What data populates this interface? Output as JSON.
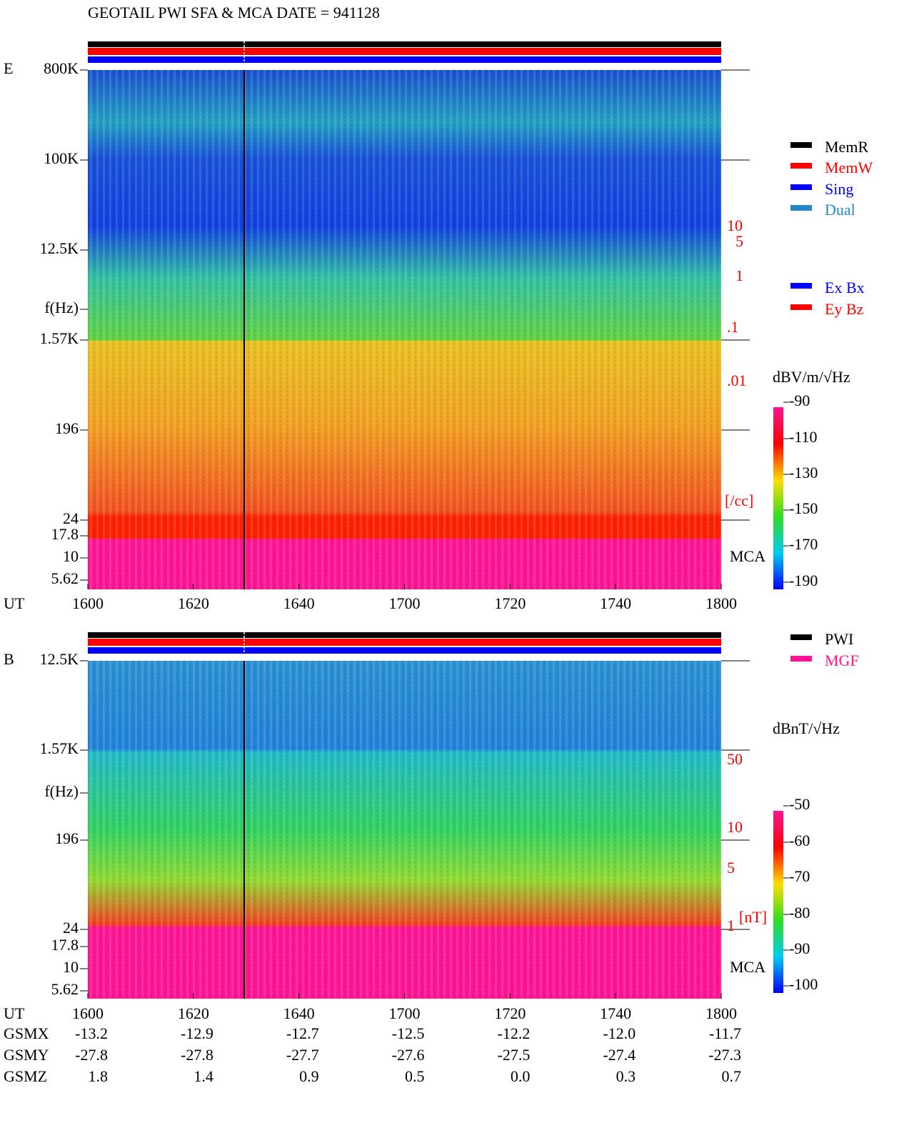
{
  "header": {
    "title": "GEOTAIL  PWI SFA & MCA   DATE = 941128"
  },
  "panels": [
    {
      "label": "E",
      "freq_labels": [
        "800K",
        "100K",
        "12.5K",
        "f(Hz)",
        "1.57K",
        "196",
        "24",
        "17.8",
        "10",
        "5.62"
      ],
      "right_labels": [
        "10",
        "5",
        "1",
        ".1",
        ".01",
        "[/cc]",
        "MCA"
      ],
      "colorbar": {
        "unit": "dBV/m/√Hz",
        "ticks": [
          "-90",
          "-110",
          "-130",
          "-150",
          "-170",
          "-190"
        ]
      },
      "legend": [
        {
          "name": "MemR",
          "color": "#000000"
        },
        {
          "name": "MemW",
          "color": "#ff0000"
        },
        {
          "name": "Sing",
          "color": "#0000ff"
        },
        {
          "name": "Dual",
          "color": "#2288cc"
        },
        {
          "name": "Ex Bx",
          "color": "#0000ff"
        },
        {
          "name": "Ey Bz",
          "color": "#ff0000"
        }
      ]
    },
    {
      "label": "B",
      "freq_labels": [
        "12.5K",
        "1.57K",
        "f(Hz)",
        "196",
        "24",
        "17.8",
        "10",
        "5.62"
      ],
      "right_labels": [
        "50",
        "10",
        "5",
        "1",
        "[nT]",
        "MCA"
      ],
      "colorbar": {
        "unit": "dBnT/√Hz",
        "ticks": [
          "-50",
          "-60",
          "-70",
          "-80",
          "-90",
          "-100"
        ]
      },
      "legend": [
        {
          "name": "PWI",
          "color": "#000000"
        },
        {
          "name": "MGF",
          "color": "#ff1493"
        }
      ]
    }
  ],
  "time_axis": {
    "label": "UT",
    "ticks": [
      "1600",
      "1620",
      "1640",
      "1700",
      "1720",
      "1740",
      "1800"
    ]
  },
  "orbit": {
    "rows": [
      {
        "name": "GSMX",
        "values": [
          "-13.2",
          "-12.9",
          "-12.7",
          "-12.5",
          "-12.2",
          "-12.0",
          "-11.7"
        ]
      },
      {
        "name": "GSMY",
        "values": [
          "-27.8",
          "-27.8",
          "-27.7",
          "-27.6",
          "-27.5",
          "-27.4",
          "-27.3"
        ]
      },
      {
        "name": "GSMZ",
        "values": [
          "1.8",
          "1.4",
          "0.9",
          "0.5",
          "0.0",
          "0.3",
          "0.7"
        ]
      }
    ]
  }
}
